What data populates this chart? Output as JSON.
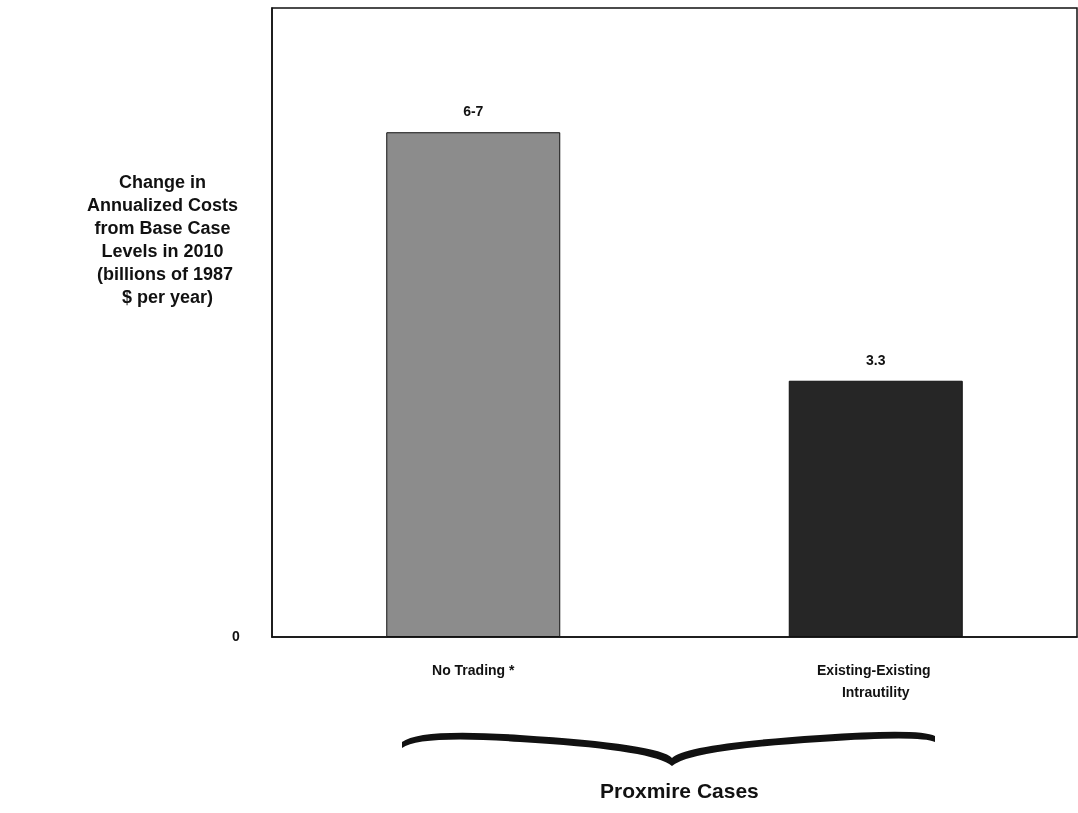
{
  "chart_data": {
    "type": "bar",
    "ylabel": "Change in Annualized Costs from Base Case Levels in 2010 (billions of 1987 $ per year)",
    "categories": [
      "No Trading *",
      "Existing-Existing Intrautility"
    ],
    "values": [
      6.5,
      3.3
    ],
    "value_labels": [
      "6-7",
      "3.3"
    ],
    "colors": [
      "#8c8c8c",
      "#262626"
    ],
    "ylim": [
      0,
      8.1
    ],
    "annotations": [
      "0",
      "Proxmire Cases"
    ]
  }
}
